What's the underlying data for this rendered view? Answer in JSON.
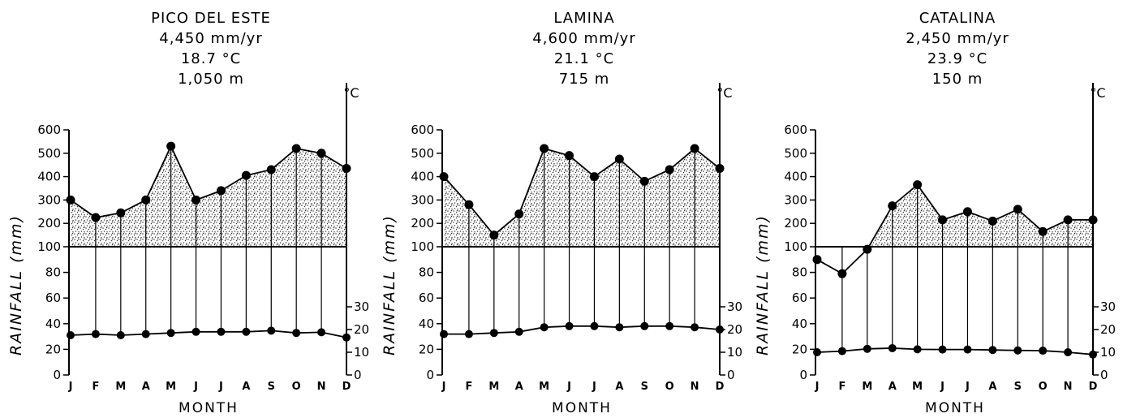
{
  "chart_data": [
    {
      "type": "line",
      "title": "PICO DEL ESTE",
      "subtitle": [
        "4,450 mm/yr",
        "18.7 °C",
        "1,050 m"
      ],
      "xlabel": "MONTH",
      "ylabel": "RAINFALL (mm)",
      "y2label": "°C",
      "categories": [
        "J",
        "F",
        "M",
        "A",
        "M",
        "J",
        "J",
        "A",
        "S",
        "O",
        "N",
        "D"
      ],
      "y_ticks": [
        "0",
        "20",
        "40",
        "60",
        "80",
        "100",
        "200",
        "300",
        "400",
        "500",
        "600"
      ],
      "y2_ticks": [
        "0",
        "10",
        "20",
        "30"
      ],
      "series": [
        {
          "values": [
            300,
            225,
            245,
            300,
            530,
            300,
            340,
            405,
            430,
            520,
            500,
            435
          ]
        },
        {
          "values": [
            17.5,
            18,
            17.5,
            18,
            18.5,
            19,
            19,
            19,
            19.5,
            18.5,
            18.8,
            16.5
          ]
        }
      ],
      "ylim": [
        0,
        600
      ],
      "y2lim": [
        0,
        50
      ]
    },
    {
      "type": "line",
      "title": "LAMINA",
      "subtitle": [
        "4,600 mm/yr",
        "21.1 °C",
        "715 m"
      ],
      "xlabel": "MONTH",
      "ylabel": "RAINFALL (mm)",
      "y2label": "°C",
      "categories": [
        "J",
        "F",
        "M",
        "A",
        "M",
        "J",
        "J",
        "A",
        "S",
        "O",
        "N",
        "D"
      ],
      "y_ticks": [
        "0",
        "20",
        "40",
        "60",
        "80",
        "100",
        "200",
        "300",
        "400",
        "500",
        "600"
      ],
      "y2_ticks": [
        "0",
        "10",
        "20",
        "30"
      ],
      "series": [
        {
          "values": [
            400,
            280,
            150,
            240,
            520,
            490,
            400,
            475,
            380,
            430,
            520,
            435
          ]
        },
        {
          "values": [
            18,
            18,
            18.5,
            19,
            21,
            21.5,
            21.5,
            21,
            21.5,
            21.5,
            21,
            20
          ]
        }
      ],
      "ylim": [
        0,
        600
      ],
      "y2lim": [
        0,
        50
      ]
    },
    {
      "type": "line",
      "title": "CATALINA",
      "subtitle": [
        "2,450 mm/yr",
        "23.9 °C",
        "150 m"
      ],
      "xlabel": "MONTH",
      "ylabel": "RAINFALL (mm)",
      "y2label": "°C",
      "categories": [
        "J",
        "F",
        "M",
        "A",
        "M",
        "J",
        "J",
        "A",
        "S",
        "O",
        "N",
        "D"
      ],
      "y_ticks": [
        "0",
        "20",
        "40",
        "60",
        "80",
        "100",
        "200",
        "300",
        "400",
        "500",
        "600"
      ],
      "y2_ticks": [
        "0",
        "10",
        "20",
        "30"
      ],
      "series": [
        {
          "values": [
            90,
            79,
            98,
            275,
            365,
            215,
            250,
            210,
            260,
            165,
            215,
            215
          ]
        },
        {
          "values": [
            10,
            10.5,
            11.5,
            11.8,
            11.3,
            11.2,
            11.2,
            11,
            10.8,
            10.7,
            10,
            9
          ]
        }
      ],
      "ylim": [
        0,
        600
      ],
      "y2lim": [
        0,
        50
      ]
    }
  ]
}
